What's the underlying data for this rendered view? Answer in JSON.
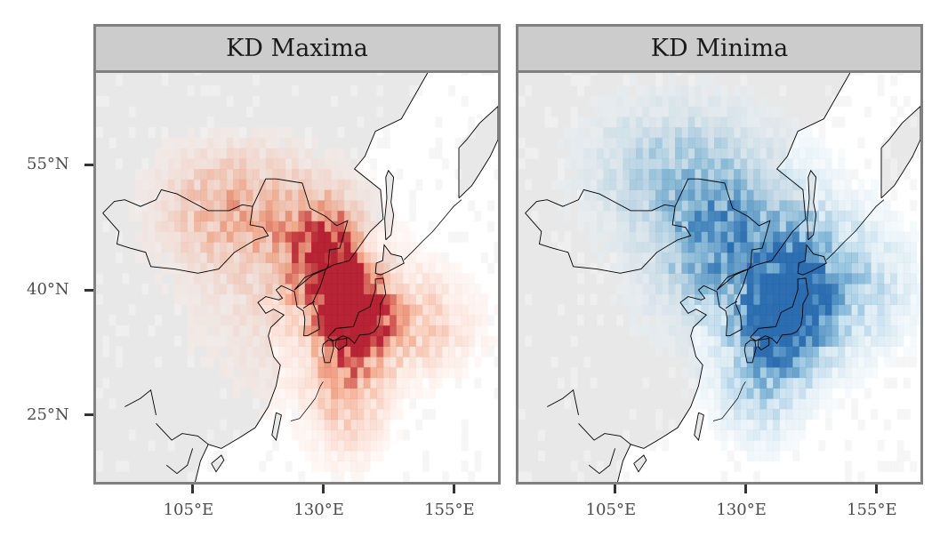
{
  "panels": [
    {
      "title": "KD Maxima",
      "palette": "reds",
      "accent": "#b2182b"
    },
    {
      "title": "KD Minima",
      "palette": "blues",
      "accent": "#2166ac"
    }
  ],
  "axes": {
    "y_ticks": [
      {
        "label": "55°N",
        "lat": 55
      },
      {
        "label": "40°N",
        "lat": 40
      },
      {
        "label": "25°N",
        "lat": 25
      }
    ],
    "x_ticks": [
      {
        "label": "105°E",
        "lon": 105
      },
      {
        "label": "130°E",
        "lon": 130
      },
      {
        "label": "155°E",
        "lon": 155
      }
    ],
    "lon_range": [
      86.5,
      163.5
    ],
    "lat_range": [
      17,
      66
    ]
  },
  "colors": {
    "land": "#e8e8e8",
    "ocean": "#ffffff",
    "frame": "#808080",
    "strip": "#cccccc",
    "coast": "#000000"
  },
  "legend": "none"
}
